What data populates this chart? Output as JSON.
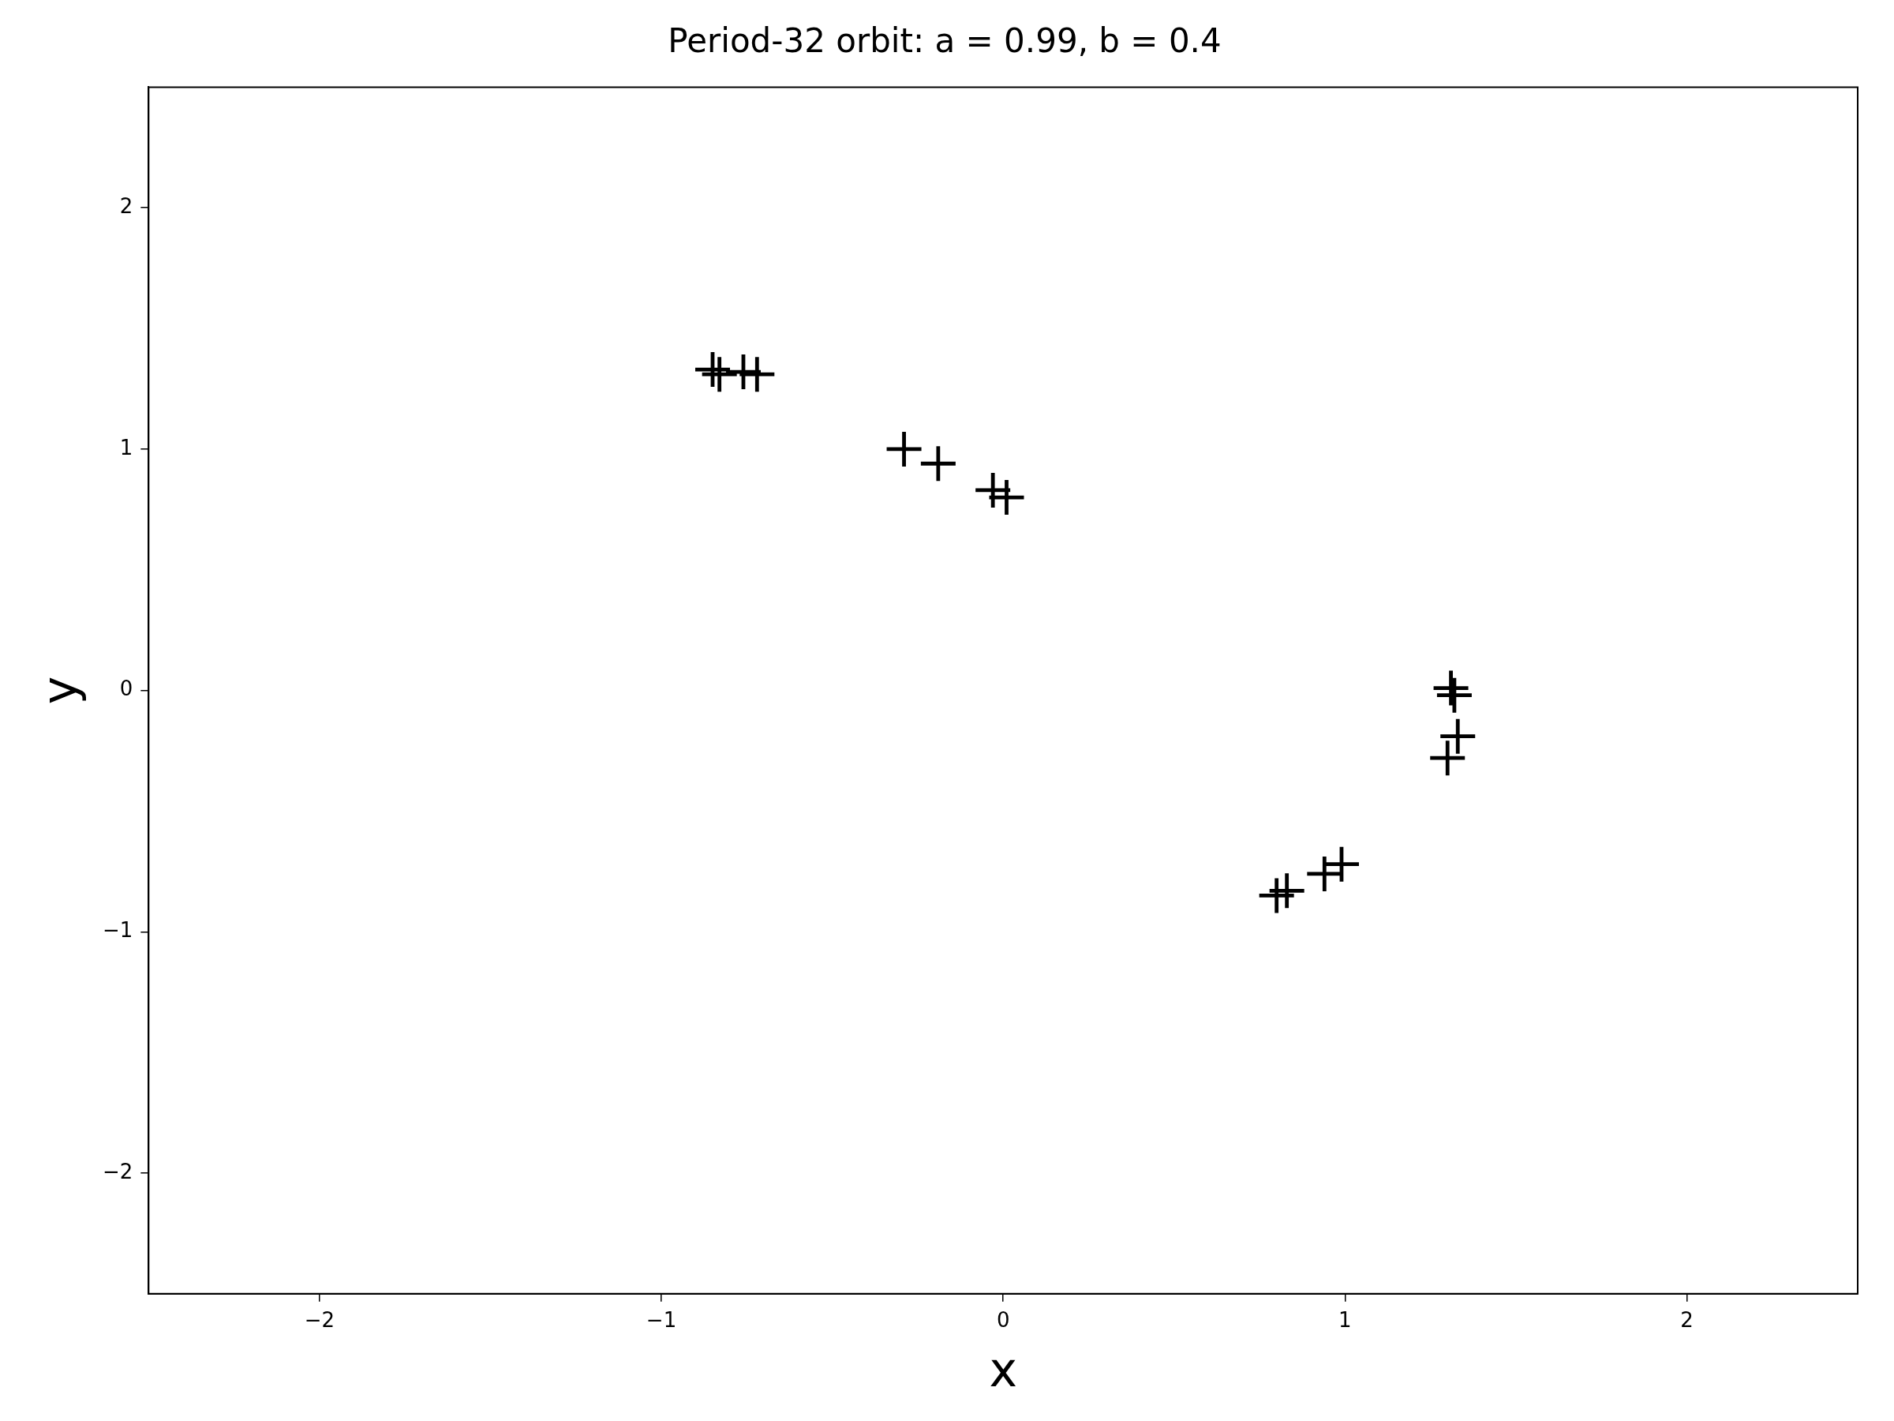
{
  "chart_data": {
    "type": "scatter",
    "title": "Period-32 orbit: a = 0.99, b = 0.4",
    "xlabel": "x",
    "ylabel": "y",
    "x": [
      -0.85,
      -0.83,
      -0.76,
      -0.72,
      -0.29,
      -0.19,
      -0.03,
      0.01,
      0.8,
      0.83,
      0.94,
      0.99,
      1.31,
      1.32,
      1.33,
      1.3
    ],
    "values": [
      1.33,
      1.31,
      1.32,
      1.31,
      1.0,
      0.94,
      0.83,
      0.8,
      -0.85,
      -0.83,
      -0.76,
      -0.72,
      0.01,
      -0.02,
      -0.19,
      -0.28
    ],
    "color": "#000000",
    "marker": "cross",
    "grid": false,
    "legend": false,
    "xlim": [
      -2.5,
      2.5
    ],
    "ylim": [
      -2.5,
      2.5
    ],
    "xticks": [
      -2,
      -1,
      0,
      1,
      2
    ],
    "yticks": [
      -2,
      -1,
      0,
      1,
      2
    ]
  }
}
